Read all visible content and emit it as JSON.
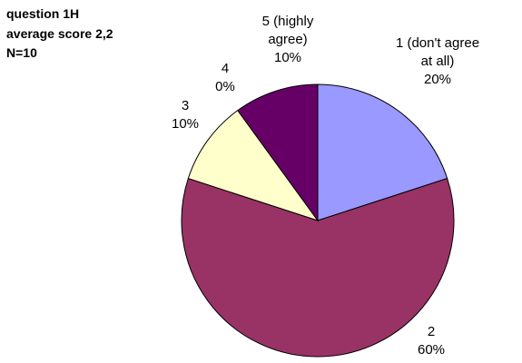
{
  "chart_data": {
    "type": "pie",
    "title_lines": [
      "question 1H",
      "average score 2,2",
      "N=10"
    ],
    "slices": [
      {
        "category_label": [
          "1 (don't agree",
          "at all)"
        ],
        "value": 20,
        "pct_label": "20%",
        "color": "#9999FF"
      },
      {
        "category_label": [
          "2"
        ],
        "value": 60,
        "pct_label": "60%",
        "color": "#993366"
      },
      {
        "category_label": [
          "3"
        ],
        "value": 10,
        "pct_label": "10%",
        "color": "#FFFFCC"
      },
      {
        "category_label": [
          "4"
        ],
        "value": 0,
        "pct_label": "0%",
        "color": "#CCFFFF"
      },
      {
        "category_label": [
          "5 (highly",
          "agree)"
        ],
        "value": 10,
        "pct_label": "10%",
        "color": "#660066"
      }
    ],
    "legend": "none"
  }
}
